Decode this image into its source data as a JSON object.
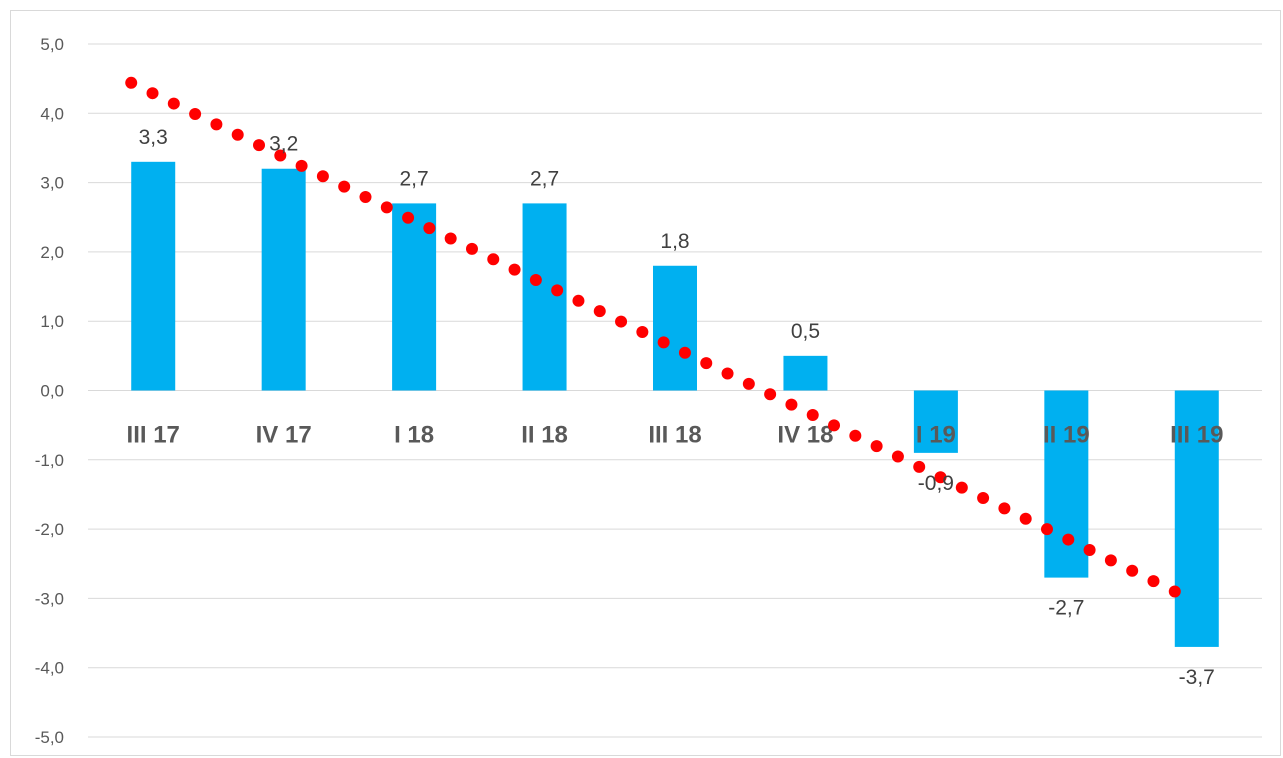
{
  "chart_data": {
    "type": "bar",
    "categories": [
      "III 17",
      "IV 17",
      "I 18",
      "II 18",
      "III 18",
      "IV 18",
      "I 19",
      "II 19",
      "III 19"
    ],
    "values": [
      3.3,
      3.2,
      2.7,
      2.7,
      1.8,
      0.5,
      -0.9,
      -2.7,
      -3.7
    ],
    "value_labels": [
      "3,3",
      "3,2",
      "2,7",
      "2,7",
      "1,8",
      "0,5",
      "-0,9",
      "-2,7",
      "-3,7"
    ],
    "ylim": [
      -5,
      5
    ],
    "yticks": [
      5,
      4,
      3,
      2,
      1,
      0,
      -1,
      -2,
      -3,
      -4,
      -5
    ],
    "ytick_labels": [
      "5,0",
      "4,0",
      "3,0",
      "2,0",
      "1,0",
      "0,0",
      "-1,0",
      "-2,0",
      "-3,0",
      "-4,0",
      "-5,0"
    ],
    "grid": true,
    "bar_color": "#00b0f0",
    "trendline": {
      "type": "linear",
      "style": "dotted",
      "color": "#ff0000",
      "start": 4.44,
      "end": -2.9
    },
    "title": "",
    "xlabel": "",
    "ylabel": ""
  }
}
